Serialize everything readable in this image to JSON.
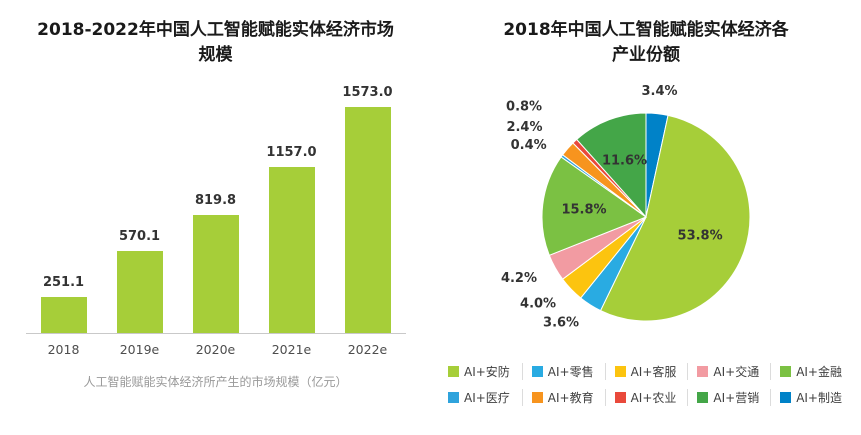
{
  "page": {
    "background": "#ffffff"
  },
  "chart_data": [
    {
      "type": "bar",
      "title": "2018-2022年中国人工智能赋能实体经济市场规模",
      "categories": [
        "2018",
        "2019e",
        "2020e",
        "2021e",
        "2022e"
      ],
      "values": [
        251.1,
        570.1,
        819.8,
        1157.0,
        1573.0
      ],
      "value_labels": [
        "251.1",
        "570.1",
        "819.8",
        "1157.0",
        "1573.0"
      ],
      "bar_color": "#a6ce39",
      "footnote": "人工智能赋能实体经济所产生的市场规模（亿元）",
      "xlabel": "",
      "ylabel": "",
      "ylim": [
        0,
        1600
      ],
      "grid": false,
      "legend_position": "none"
    },
    {
      "type": "pie",
      "title": "2018年中国人工智能赋能实体经济各产业份额",
      "start_angle_deg": 0,
      "direction": "clockwise",
      "slices": [
        {
          "label": "AI+制造",
          "value": 3.4,
          "color": "#0082c8"
        },
        {
          "label": "AI+安防",
          "value": 53.8,
          "color": "#a6ce39"
        },
        {
          "label": "AI+零售",
          "value": 3.6,
          "color": "#29abe2"
        },
        {
          "label": "AI+客服",
          "value": 4.0,
          "color": "#fcc40f"
        },
        {
          "label": "AI+交通",
          "value": 4.2,
          "color": "#f29ba2"
        },
        {
          "label": "AI+金融",
          "value": 15.8,
          "color": "#7bc143"
        },
        {
          "label": "AI+医疗",
          "value": 0.4,
          "color": "#2fa3dc"
        },
        {
          "label": "AI+教育",
          "value": 2.4,
          "color": "#f7941e"
        },
        {
          "label": "AI+农业",
          "value": 0.8,
          "color": "#e9493b"
        },
        {
          "label": "AI+营销",
          "value": 11.6,
          "color": "#44a648"
        }
      ],
      "legend_order": [
        "AI+安防",
        "AI+零售",
        "AI+客服",
        "AI+交通",
        "AI+金融",
        "AI+医疗",
        "AI+教育",
        "AI+农业",
        "AI+营销",
        "AI+制造"
      ],
      "legend_position": "bottom"
    }
  ]
}
